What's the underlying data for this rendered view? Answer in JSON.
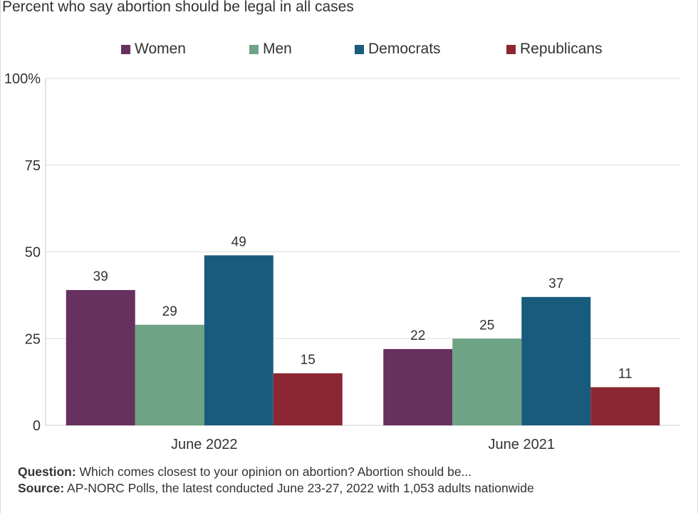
{
  "subtitle": "Percent who say abortion should be legal in all cases",
  "chart_data": {
    "type": "bar",
    "title": "",
    "subtitle": "Percent who say abortion should be legal in all cases",
    "xlabel": "",
    "ylabel": "",
    "categories": [
      "June 2022",
      "June 2021"
    ],
    "series": [
      {
        "name": "Women",
        "values": [
          39,
          22
        ],
        "color": "#66305f"
      },
      {
        "name": "Men",
        "values": [
          29,
          25
        ],
        "color": "#6fa386"
      },
      {
        "name": "Democrats",
        "values": [
          49,
          37
        ],
        "color": "#185b7d"
      },
      {
        "name": "Republicans",
        "values": [
          15,
          11
        ],
        "color": "#8b2733"
      }
    ],
    "ylim": [
      0,
      100
    ],
    "yticks": [
      0,
      25,
      50,
      75,
      100
    ],
    "ytick_labels": [
      "0",
      "25",
      "50",
      "75",
      "100%"
    ],
    "grid": true,
    "legend_position": "top",
    "data_labels": true
  },
  "footer": {
    "question_label": "Question:",
    "question_text": " Which comes closest to your opinion on abortion? Abortion should be...",
    "source_label": "Source:",
    "source_text": " AP-NORC Polls, the latest conducted June 23-27, 2022 with 1,053 adults nationwide"
  },
  "colors": {
    "gridline": "#dcdcdc",
    "axis": "#c8c8c8",
    "text": "#333333"
  }
}
